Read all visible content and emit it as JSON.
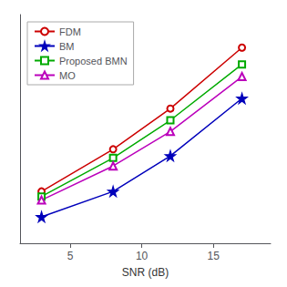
{
  "chart_data": {
    "type": "line",
    "xlabel": "SNR (dB)",
    "x": [
      3,
      8,
      12,
      17
    ],
    "series": [
      {
        "name": "FDM",
        "color": "#cc0000",
        "marker": "circle",
        "values": [
          0.72,
          1.55,
          2.35,
          3.55
        ]
      },
      {
        "name": "BM",
        "color": "#0000bb",
        "marker": "star",
        "values": [
          0.22,
          0.72,
          1.42,
          2.55
        ]
      },
      {
        "name": "Proposed BMN",
        "color": "#00aa00",
        "marker": "square",
        "values": [
          0.62,
          1.38,
          2.12,
          3.22
        ]
      },
      {
        "name": "MO",
        "color": "#bb00bb",
        "marker": "triangle",
        "values": [
          0.55,
          1.22,
          1.9,
          2.98
        ]
      }
    ],
    "xlim": [
      1.5,
      19
    ],
    "xticks": [
      5,
      10,
      15
    ],
    "ylim": [
      -0.3,
      4.2
    ],
    "yticks": [],
    "tick_labels": "x",
    "grid": false,
    "legend": "upper left"
  }
}
